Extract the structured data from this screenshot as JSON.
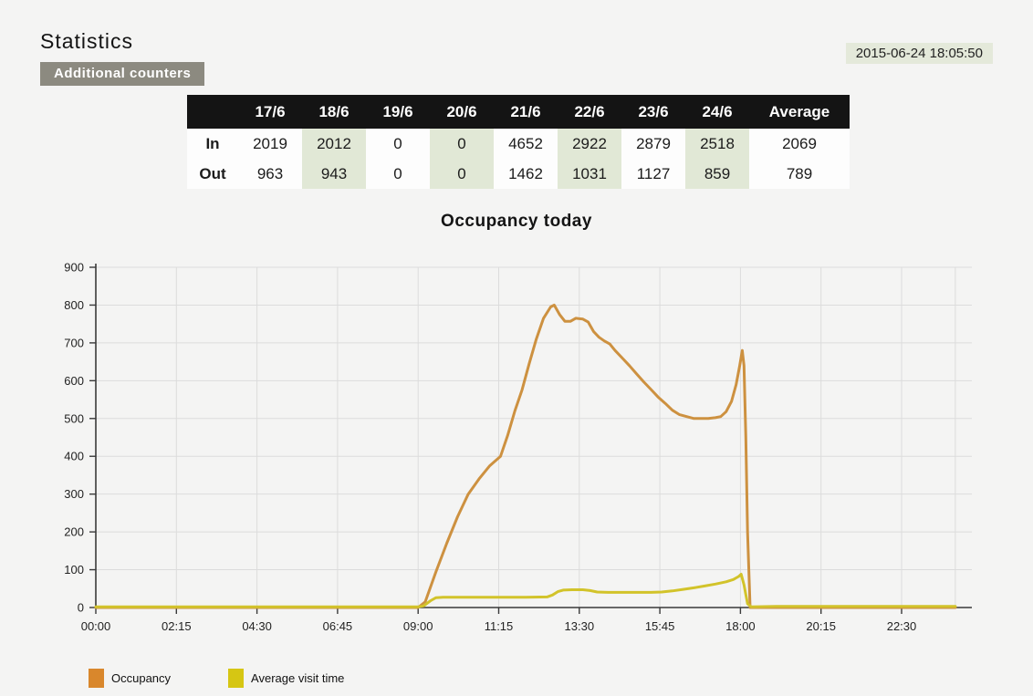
{
  "page": {
    "title": "Statistics",
    "counters_button": "Additional counters",
    "timestamp": "2015-06-24 18:05:50"
  },
  "table": {
    "columns": [
      "",
      "17/6",
      "18/6",
      "19/6",
      "20/6",
      "21/6",
      "22/6",
      "23/6",
      "24/6",
      "Average"
    ],
    "rows": [
      {
        "label": "In",
        "values": [
          "2019",
          "2012",
          "0",
          "0",
          "4652",
          "2922",
          "2879",
          "2518",
          "2069"
        ]
      },
      {
        "label": "Out",
        "values": [
          "963",
          "943",
          "0",
          "0",
          "1462",
          "1031",
          "1127",
          "859",
          "789"
        ]
      }
    ]
  },
  "chart_data": {
    "type": "line",
    "title": "Occupancy today",
    "xlabel": "",
    "ylabel": "",
    "ylim": [
      0,
      900
    ],
    "y_ticks": [
      0,
      100,
      200,
      300,
      400,
      500,
      600,
      700,
      800,
      900
    ],
    "x_range_hours": [
      0,
      24
    ],
    "x_ticks": [
      {
        "hour": 0,
        "label": "00:00"
      },
      {
        "hour": 2.25,
        "label": "02:15"
      },
      {
        "hour": 4.5,
        "label": "04:30"
      },
      {
        "hour": 6.75,
        "label": "06:45"
      },
      {
        "hour": 9,
        "label": "09:00"
      },
      {
        "hour": 11.25,
        "label": "11:15"
      },
      {
        "hour": 13.5,
        "label": "13:30"
      },
      {
        "hour": 15.75,
        "label": "15:45"
      },
      {
        "hour": 18,
        "label": "18:00"
      },
      {
        "hour": 20.25,
        "label": "20:15"
      },
      {
        "hour": 22.5,
        "label": "22:30"
      }
    ],
    "grid": true,
    "legend_position": "bottom-left",
    "series": [
      {
        "name": "Occupancy",
        "color": "#cd9140",
        "legend_color": "#d9872c",
        "points": [
          [
            0,
            0
          ],
          [
            9.0,
            0
          ],
          [
            9.2,
            15
          ],
          [
            9.5,
            95
          ],
          [
            9.8,
            170
          ],
          [
            10.1,
            240
          ],
          [
            10.4,
            300
          ],
          [
            10.7,
            340
          ],
          [
            11.0,
            375
          ],
          [
            11.3,
            400
          ],
          [
            11.5,
            455
          ],
          [
            11.7,
            520
          ],
          [
            11.9,
            575
          ],
          [
            12.1,
            645
          ],
          [
            12.3,
            710
          ],
          [
            12.5,
            765
          ],
          [
            12.7,
            795
          ],
          [
            12.8,
            800
          ],
          [
            12.95,
            775
          ],
          [
            13.1,
            757
          ],
          [
            13.25,
            757
          ],
          [
            13.4,
            765
          ],
          [
            13.6,
            763
          ],
          [
            13.75,
            755
          ],
          [
            13.9,
            730
          ],
          [
            14.05,
            715
          ],
          [
            14.2,
            705
          ],
          [
            14.35,
            697
          ],
          [
            14.5,
            680
          ],
          [
            14.7,
            660
          ],
          [
            14.9,
            640
          ],
          [
            15.1,
            618
          ],
          [
            15.3,
            597
          ],
          [
            15.5,
            577
          ],
          [
            15.7,
            557
          ],
          [
            15.9,
            540
          ],
          [
            16.1,
            522
          ],
          [
            16.3,
            510
          ],
          [
            16.5,
            505
          ],
          [
            16.7,
            500
          ],
          [
            16.9,
            500
          ],
          [
            17.1,
            500
          ],
          [
            17.3,
            502
          ],
          [
            17.45,
            505
          ],
          [
            17.6,
            518
          ],
          [
            17.75,
            545
          ],
          [
            17.88,
            590
          ],
          [
            17.98,
            640
          ],
          [
            18.05,
            680
          ],
          [
            18.1,
            640
          ],
          [
            18.15,
            450
          ],
          [
            18.2,
            200
          ],
          [
            18.27,
            0
          ],
          [
            24,
            0
          ]
        ]
      },
      {
        "name": "Average visit time",
        "color": "#d2c32a",
        "legend_color": "#d6c613",
        "points": [
          [
            0,
            2
          ],
          [
            9.0,
            2
          ],
          [
            9.15,
            4
          ],
          [
            9.35,
            18
          ],
          [
            9.5,
            26
          ],
          [
            9.7,
            27
          ],
          [
            10,
            27
          ],
          [
            11,
            27
          ],
          [
            12,
            27
          ],
          [
            12.6,
            28
          ],
          [
            12.75,
            33
          ],
          [
            12.9,
            42
          ],
          [
            13.05,
            46
          ],
          [
            13.3,
            47
          ],
          [
            13.6,
            47
          ],
          [
            13.8,
            45
          ],
          [
            14.0,
            41
          ],
          [
            14.3,
            40
          ],
          [
            14.7,
            40
          ],
          [
            15.1,
            40
          ],
          [
            15.5,
            40
          ],
          [
            15.8,
            41
          ],
          [
            16.1,
            44
          ],
          [
            16.4,
            48
          ],
          [
            16.7,
            52
          ],
          [
            17.0,
            57
          ],
          [
            17.3,
            62
          ],
          [
            17.6,
            68
          ],
          [
            17.8,
            74
          ],
          [
            17.95,
            82
          ],
          [
            18.02,
            88
          ],
          [
            18.1,
            60
          ],
          [
            18.2,
            10
          ],
          [
            18.3,
            2
          ],
          [
            19,
            3
          ],
          [
            24,
            3
          ]
        ]
      }
    ],
    "style": {
      "grid_color": "#dcdcdc",
      "axis_color": "#3a3a3a",
      "tick_label_color": "#222222",
      "line_width": 3
    }
  }
}
